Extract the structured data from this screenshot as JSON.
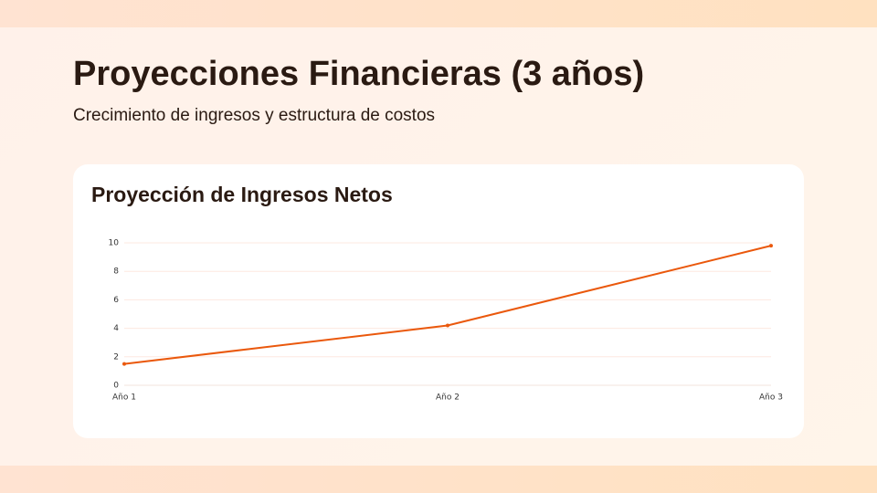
{
  "title": "Proyecciones Financieras (3 años)",
  "subtitle": "Crecimiento de ingresos y estructura de costos",
  "chart_data": {
    "type": "line",
    "title": "Proyección de Ingresos Netos",
    "categories": [
      "Año 1",
      "Año 2",
      "Año 3"
    ],
    "values": [
      1.5,
      4.2,
      9.8
    ],
    "color": "#ea580c",
    "ylim": [
      0,
      10
    ],
    "yticks": [
      0,
      2,
      4,
      6,
      8,
      10
    ],
    "grid": true
  }
}
